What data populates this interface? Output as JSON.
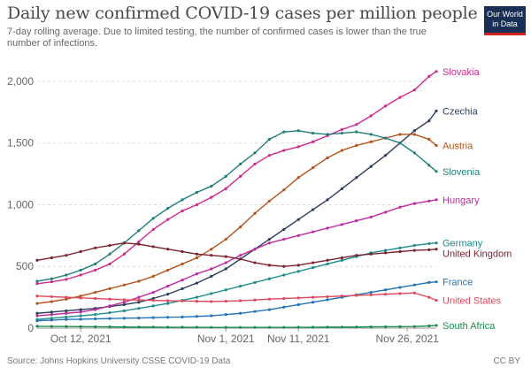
{
  "title": "Daily new confirmed COVID-19 cases per million people",
  "subtitle": "7-day rolling average. Due to limited testing, the number of confirmed cases is lower than the true number of infections.",
  "logo": {
    "line1": "Our World",
    "line2": "in Data",
    "colors": {
      "background": "#1a2f55",
      "stripe": "#ce261e"
    }
  },
  "footer": {
    "source": "Source: Johns Hopkins University CSSE COVID-19 Data",
    "license": "CC BY"
  },
  "chart_data": {
    "type": "line",
    "x_dates": [
      "2021-10-06",
      "2021-10-08",
      "2021-10-10",
      "2021-10-12",
      "2021-10-14",
      "2021-10-16",
      "2021-10-18",
      "2021-10-20",
      "2021-10-22",
      "2021-10-24",
      "2021-10-26",
      "2021-10-28",
      "2021-10-30",
      "2021-11-01",
      "2021-11-03",
      "2021-11-05",
      "2021-11-07",
      "2021-11-09",
      "2021-11-11",
      "2021-11-13",
      "2021-11-15",
      "2021-11-17",
      "2021-11-19",
      "2021-11-21",
      "2021-11-23",
      "2021-11-25",
      "2021-11-27",
      "2021-11-29",
      "2021-11-30"
    ],
    "x_ticks": [
      {
        "date": "2021-10-12",
        "label": "Oct 12, 2021"
      },
      {
        "date": "2021-11-01",
        "label": "Nov 1, 2021"
      },
      {
        "date": "2021-11-11",
        "label": "Nov 11, 2021"
      },
      {
        "date": "2021-11-26",
        "label": "Nov 26, 2021"
      }
    ],
    "y_ticks": [
      0,
      500,
      1000,
      1500,
      2000
    ],
    "y_tick_labels": [
      "0",
      "500",
      "1,000",
      "1,500",
      "2,000"
    ],
    "ylim": [
      0,
      2100
    ],
    "grid": "horizontal dashed",
    "legend": "labels at line ends (right)",
    "series": [
      {
        "name": "Slovakia",
        "color": "#cf2a8c",
        "values": [
          360,
          375,
          395,
          430,
          470,
          520,
          600,
          700,
          800,
          880,
          950,
          1000,
          1060,
          1130,
          1230,
          1330,
          1400,
          1440,
          1470,
          1510,
          1560,
          1610,
          1650,
          1720,
          1800,
          1870,
          1930,
          2040,
          2080
        ]
      },
      {
        "name": "Czechia",
        "color": "#2c3e5a",
        "values": [
          120,
          130,
          140,
          150,
          160,
          175,
          190,
          210,
          240,
          275,
          320,
          365,
          420,
          480,
          560,
          640,
          720,
          800,
          880,
          960,
          1040,
          1130,
          1220,
          1310,
          1400,
          1500,
          1600,
          1680,
          1760
        ]
      },
      {
        "name": "Austria",
        "color": "#b4541b",
        "values": [
          200,
          215,
          235,
          260,
          290,
          320,
          350,
          380,
          420,
          470,
          520,
          570,
          640,
          720,
          820,
          930,
          1030,
          1120,
          1220,
          1300,
          1380,
          1440,
          1480,
          1510,
          1540,
          1570,
          1570,
          1530,
          1480
        ]
      },
      {
        "name": "Slovenia",
        "color": "#207e78",
        "values": [
          380,
          400,
          430,
          470,
          520,
          600,
          690,
          790,
          890,
          970,
          1040,
          1100,
          1150,
          1230,
          1330,
          1420,
          1530,
          1590,
          1600,
          1580,
          1570,
          1580,
          1590,
          1570,
          1540,
          1500,
          1420,
          1320,
          1270
        ]
      },
      {
        "name": "Hungary",
        "color": "#be2aa3",
        "values": [
          100,
          110,
          120,
          130,
          150,
          180,
          210,
          250,
          290,
          340,
          390,
          440,
          480,
          530,
          590,
          640,
          690,
          720,
          750,
          780,
          810,
          840,
          870,
          900,
          940,
          980,
          1010,
          1030,
          1040
        ]
      },
      {
        "name": "Germany",
        "color": "#1e8c8a",
        "values": [
          70,
          80,
          90,
          100,
          110,
          125,
          140,
          160,
          180,
          200,
          225,
          250,
          280,
          310,
          340,
          370,
          400,
          430,
          460,
          490,
          520,
          550,
          580,
          610,
          630,
          650,
          670,
          685,
          690
        ]
      },
      {
        "name": "United Kingdom",
        "color": "#7b2330",
        "values": [
          550,
          570,
          590,
          620,
          650,
          670,
          690,
          680,
          660,
          640,
          620,
          600,
          590,
          580,
          560,
          530,
          510,
          500,
          510,
          530,
          550,
          570,
          590,
          600,
          610,
          620,
          630,
          635,
          640
        ]
      },
      {
        "name": "France",
        "color": "#2374b6",
        "values": [
          60,
          65,
          70,
          72,
          75,
          78,
          80,
          82,
          85,
          88,
          90,
          95,
          100,
          110,
          120,
          135,
          150,
          170,
          190,
          210,
          230,
          250,
          270,
          290,
          310,
          330,
          350,
          370,
          375
        ]
      },
      {
        "name": "United States",
        "color": "#e0475b",
        "values": [
          260,
          255,
          250,
          245,
          240,
          235,
          230,
          228,
          225,
          222,
          220,
          218,
          216,
          218,
          222,
          228,
          235,
          240,
          245,
          250,
          255,
          260,
          265,
          270,
          275,
          280,
          285,
          250,
          225
        ]
      },
      {
        "name": "South Africa",
        "color": "#1a8c4e",
        "values": [
          15,
          14,
          13,
          12,
          11,
          10,
          9,
          8,
          8,
          7,
          7,
          7,
          6,
          6,
          6,
          6,
          6,
          6,
          7,
          7,
          8,
          8,
          9,
          10,
          11,
          12,
          13,
          18,
          22
        ]
      }
    ]
  }
}
